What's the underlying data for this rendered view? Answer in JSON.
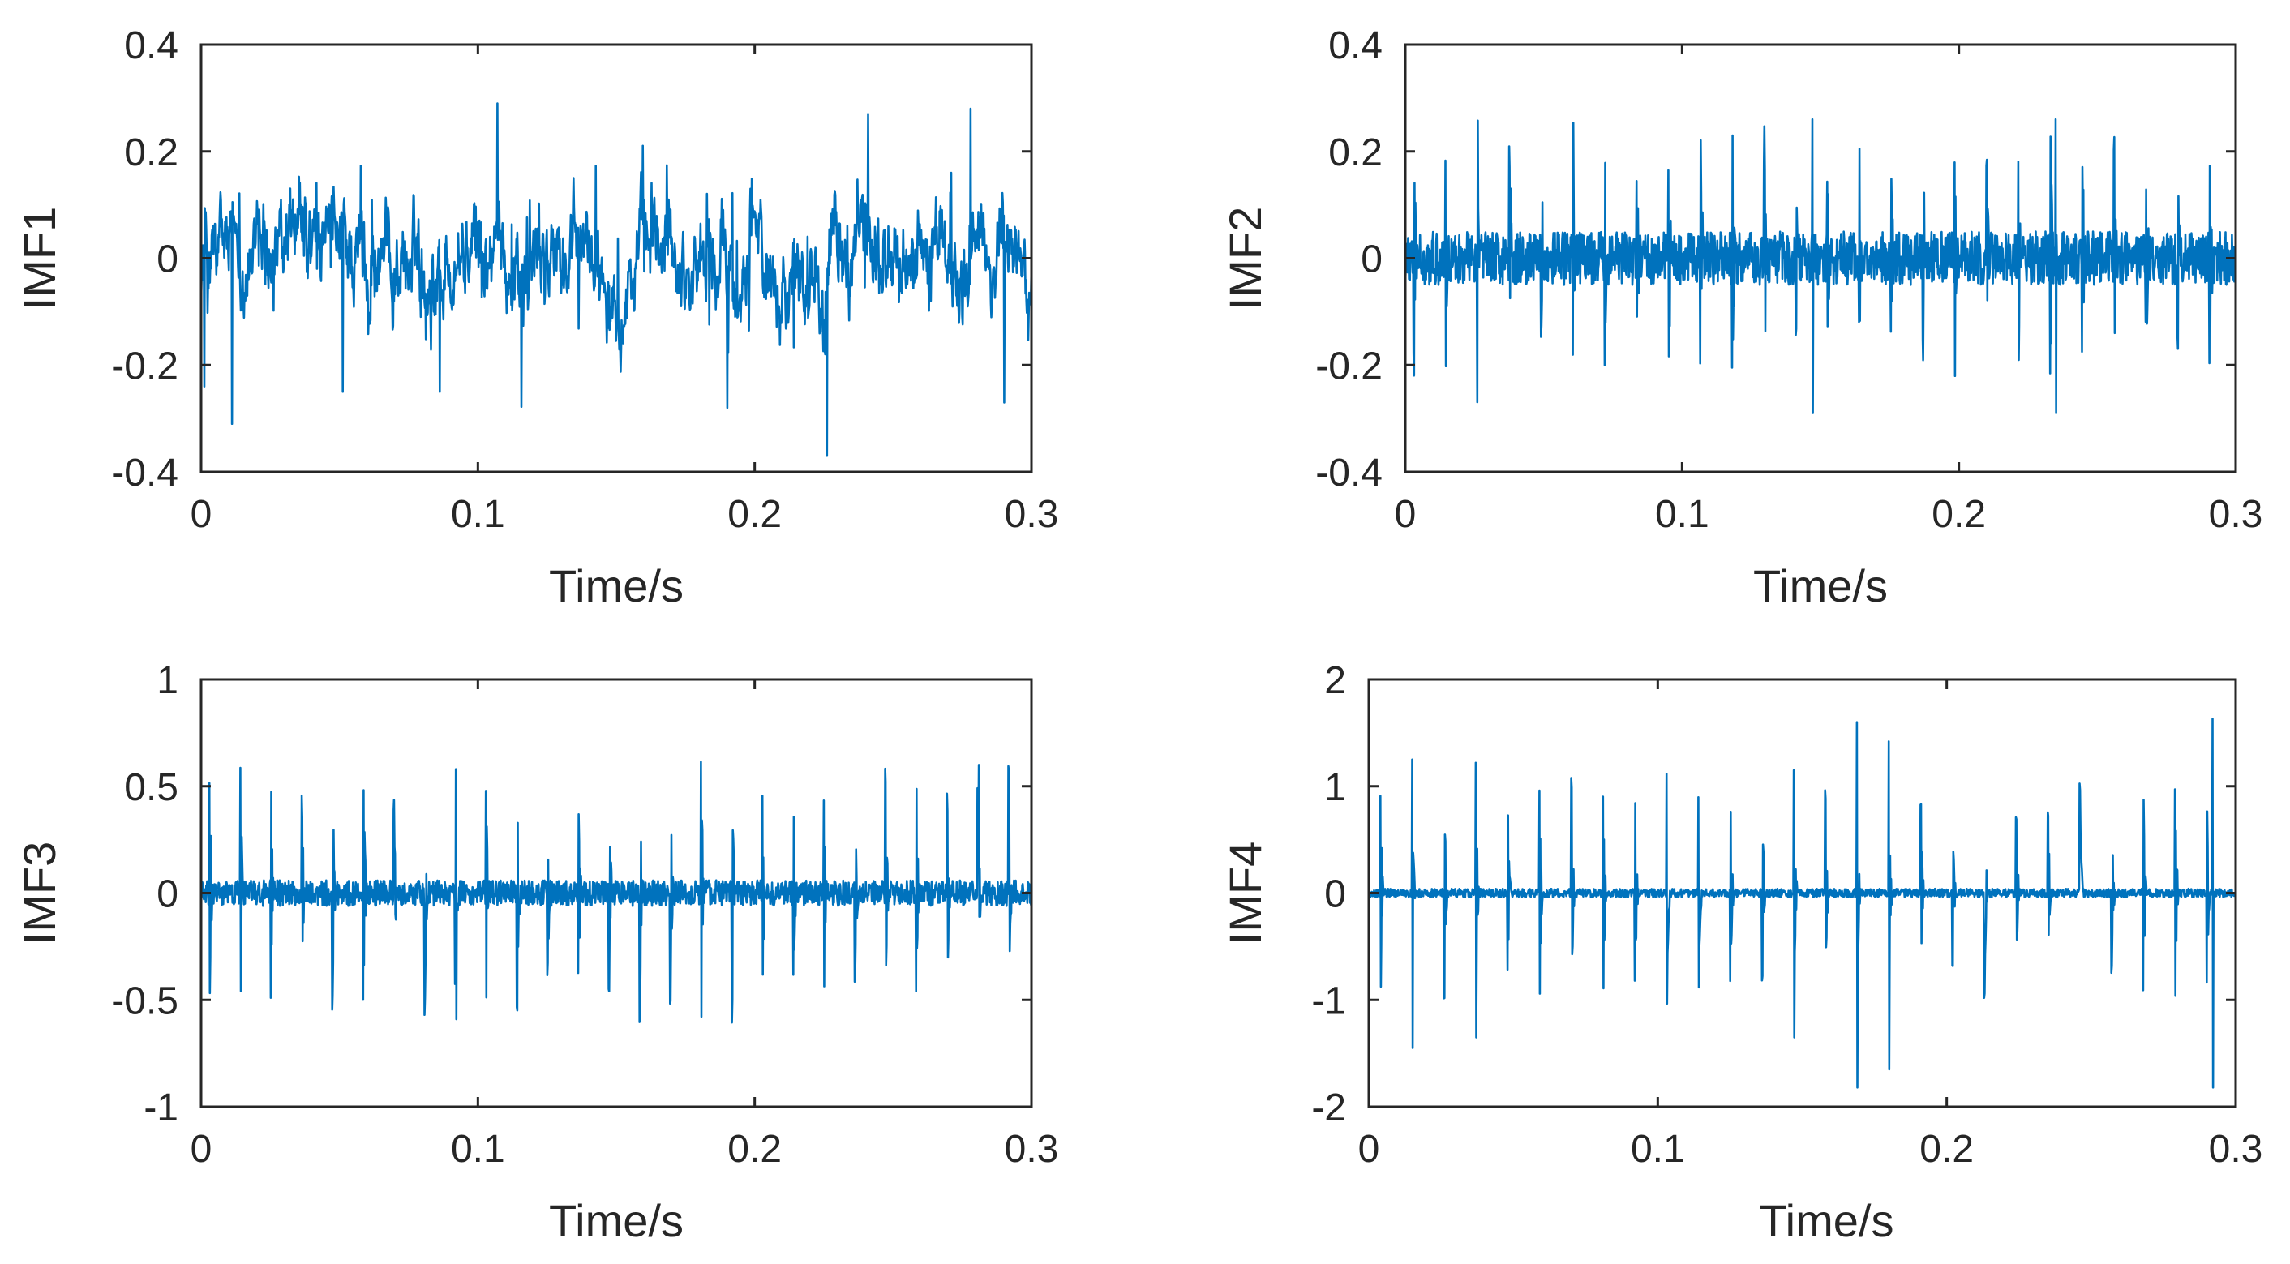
{
  "chart_data": [
    {
      "type": "line",
      "panel": "top-left",
      "title": "",
      "xlabel": "Time/s",
      "ylabel": "IMF1",
      "xlim": [
        0,
        0.3
      ],
      "ylim": [
        -0.4,
        0.4
      ],
      "xticks": [
        "0",
        "0.1",
        "0.2",
        "0.3"
      ],
      "yticks": [
        "0.4",
        "0.2",
        "0",
        "-0.2",
        "-0.4"
      ],
      "color": "#0072BD",
      "signal": {
        "kind": "broadband noise",
        "duration_s": 0.3,
        "noise_rms": 0.075,
        "max_value": 0.29,
        "min_value": -0.37,
        "peaks": [
          {
            "t": 0.107,
            "v": 0.29
          },
          {
            "t": 0.278,
            "v": 0.28
          },
          {
            "t": 0.241,
            "v": 0.27
          },
          {
            "t": 0.226,
            "v": -0.37
          },
          {
            "t": 0.011,
            "v": -0.31
          },
          {
            "t": 0.001,
            "v": -0.24
          },
          {
            "t": 0.051,
            "v": -0.25
          },
          {
            "t": 0.086,
            "v": -0.25
          },
          {
            "t": 0.19,
            "v": -0.28
          },
          {
            "t": 0.29,
            "v": -0.27
          }
        ]
      }
    },
    {
      "type": "line",
      "panel": "top-right",
      "title": "",
      "xlabel": "Time/s",
      "ylabel": "IMF2",
      "xlim": [
        0,
        0.3
      ],
      "ylim": [
        -0.4,
        0.4
      ],
      "xticks": [
        "0",
        "0.1",
        "0.2",
        "0.3"
      ],
      "yticks": [
        "0.4",
        "0.2",
        "0",
        "-0.2",
        "-0.4"
      ],
      "color": "#0072BD",
      "signal": {
        "kind": "periodic impulses with noise band",
        "duration_s": 0.3,
        "noise_amplitude": 0.05,
        "impulse_amplitude": 0.2,
        "impulse_period_s": 0.0115,
        "first_impulse_s": 0.003,
        "peaks": [
          {
            "t": 0.147,
            "v": 0.26
          },
          {
            "t": 0.147,
            "v": -0.29
          },
          {
            "t": 0.235,
            "v": 0.26
          },
          {
            "t": 0.235,
            "v": -0.29
          }
        ]
      }
    },
    {
      "type": "line",
      "panel": "bottom-left",
      "title": "",
      "xlabel": "Time/s",
      "ylabel": "IMF3",
      "xlim": [
        0,
        0.3
      ],
      "ylim": [
        -1,
        1
      ],
      "xticks": [
        "0",
        "0.1",
        "0.2",
        "0.3"
      ],
      "yticks": [
        "1",
        "0.5",
        "0",
        "-0.5",
        "-1"
      ],
      "color": "#0072BD",
      "signal": {
        "kind": "periodic impulses with noise band",
        "duration_s": 0.3,
        "noise_amplitude": 0.06,
        "impulse_amplitude": 0.5,
        "impulse_period_s": 0.0111,
        "first_impulse_s": 0.003,
        "peaks": [
          {
            "t": 0.092,
            "v": 0.58
          },
          {
            "t": 0.092,
            "v": -0.59
          },
          {
            "t": 0.281,
            "v": 0.6
          }
        ]
      }
    },
    {
      "type": "line",
      "panel": "bottom-right",
      "title": "",
      "xlabel": "Time/s",
      "ylabel": "IMF4",
      "xlim": [
        0,
        0.3
      ],
      "ylim": [
        -2,
        2
      ],
      "xticks": [
        "0",
        "0.1",
        "0.2",
        "0.3"
      ],
      "yticks": [
        "2",
        "1",
        "0",
        "-1",
        "-2"
      ],
      "color": "#0072BD",
      "signal": {
        "kind": "periodic impulses with noise band",
        "duration_s": 0.3,
        "noise_amplitude": 0.04,
        "impulse_amplitude": 0.9,
        "impulse_period_s": 0.011,
        "first_impulse_s": 0.004,
        "peaks": [
          {
            "t": 0.015,
            "v": 1.25
          },
          {
            "t": 0.015,
            "v": -1.45
          },
          {
            "t": 0.037,
            "v": 1.22
          },
          {
            "t": 0.037,
            "v": -1.35
          },
          {
            "t": 0.169,
            "v": 1.6
          },
          {
            "t": 0.169,
            "v": -1.82
          },
          {
            "t": 0.18,
            "v": 1.42
          },
          {
            "t": 0.18,
            "v": -1.65
          },
          {
            "t": 0.292,
            "v": 1.63
          },
          {
            "t": 0.292,
            "v": -1.82
          },
          {
            "t": 0.147,
            "v": 1.15
          },
          {
            "t": 0.147,
            "v": -1.35
          }
        ]
      }
    }
  ]
}
